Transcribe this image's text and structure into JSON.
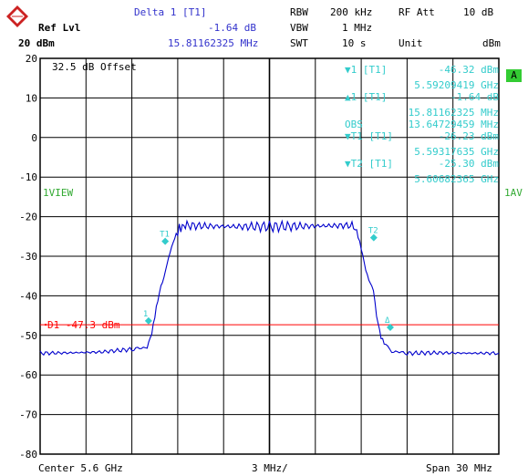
{
  "header": {
    "marker_title": "Delta 1 [T1]",
    "marker_level": "-1.64 dB",
    "marker_freq": "15.81162325 MHz",
    "ref_label": "Ref Lvl",
    "ref_value": "20 dBm",
    "rbw_label": "RBW",
    "rbw_value": "200 kHz",
    "rfatt_label": "RF Att",
    "rfatt_value": "10 dB",
    "vbw_label": "VBW",
    "vbw_value": "1 MHz",
    "swt_label": "SWT",
    "swt_value": "10 s",
    "unit_label": "Unit",
    "unit_value": "dBm"
  },
  "offset_text": "32.5 dB Offset",
  "left_tag": "1VIEW",
  "right_tag": "1AV",
  "a_badge": "A",
  "marker_table": [
    {
      "label": "▼1 [T1]",
      "value": "-46.32 dBm",
      "freq": "5.59209419 GHz"
    },
    {
      "label": "▲1 [T1]",
      "value": "-1.64 dB",
      "freq": "15.81162325 MHz"
    },
    {
      "label": "OBS",
      "value": "",
      "freq": "13.64729459 MHz"
    },
    {
      "label": "▼T1 [T1]",
      "value": "-26.23 dBm",
      "freq": "5.59317635 GHz"
    },
    {
      "label": "▼T2 [T1]",
      "value": "-25.30 dBm",
      "freq": "5.60682365 GHz"
    }
  ],
  "footer": {
    "center": "Center 5.6 GHz",
    "div": "3 MHz/",
    "span": "Span 30 MHz"
  },
  "display_line": {
    "label": "D1 -47.3 dBm",
    "level": -47.3,
    "color": "#ff0000"
  },
  "chart_data": {
    "type": "line",
    "ylim": [
      -80,
      20
    ],
    "yticks": [
      "20",
      "10",
      "0",
      "-10",
      "-20",
      "-30",
      "-40",
      "-50",
      "-60",
      "-70",
      "-80"
    ],
    "xlim": [
      5585,
      5615
    ],
    "x_unit": "MHz",
    "grid": true,
    "series": [
      {
        "color": "#0000cc",
        "x": [
          5585.0,
          5587.0,
          5589.0,
          5591.0,
          5592.0,
          5592.3,
          5592.6,
          5592.9,
          5593.1,
          5593.2,
          5593.5,
          5593.7,
          5594.0,
          5594.3,
          5594.6,
          5596.0,
          5598.0,
          5600.0,
          5602.0,
          5604.0,
          5605.4,
          5605.7,
          5606.0,
          5606.3,
          5606.5,
          5606.8,
          5607.0,
          5607.3,
          5607.6,
          5608.0,
          5609.0,
          5611.0,
          5613.0,
          5615.0
        ],
        "y": [
          -54.5,
          -54.4,
          -54.2,
          -53.5,
          -53.0,
          -49.5,
          -43.0,
          -37.5,
          -35.5,
          -33.5,
          -29.0,
          -26.5,
          -23.5,
          -22.5,
          -22.2,
          -22.4,
          -22.5,
          -22.5,
          -22.4,
          -22.3,
          -22.2,
          -23.5,
          -28.0,
          -33.5,
          -36.0,
          -38.5,
          -45.0,
          -50.5,
          -52.5,
          -54.0,
          -54.5,
          -54.4,
          -54.5,
          -54.5
        ]
      }
    ],
    "markers": [
      {
        "name": "1",
        "x": 5592.09,
        "y": -46.32
      },
      {
        "name": "T1",
        "x": 5593.18,
        "y": -26.23
      },
      {
        "name": "T2",
        "x": 5606.82,
        "y": -25.3
      },
      {
        "name": "Δ",
        "x": 5607.9,
        "y": -47.96
      }
    ]
  }
}
